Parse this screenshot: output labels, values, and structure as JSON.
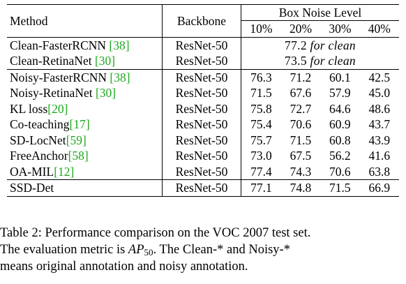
{
  "table": {
    "headers": {
      "method": "Method",
      "backbone": "Backbone",
      "noise_group": "Box Noise Level",
      "levels": [
        "10%",
        "20%",
        "30%",
        "40%"
      ]
    },
    "clean_rows": [
      {
        "method": "Clean-FasterRCNN ",
        "cite": "[38]",
        "backbone": "ResNet-50",
        "value": "77.2 ",
        "note": "for clean"
      },
      {
        "method": "Clean-RetinaNet ",
        "cite": "[30]",
        "backbone": "ResNet-50",
        "value": "73.5 ",
        "note": "for clean"
      }
    ],
    "rows": [
      {
        "method": "Noisy-FasterRCNN ",
        "cite": "[38]",
        "backbone": "ResNet-50",
        "values": [
          "76.3",
          "71.2",
          "60.1",
          "42.5"
        ]
      },
      {
        "method": "Noisy-RetinaNet ",
        "cite": "[30]",
        "backbone": "ResNet-50",
        "values": [
          "71.5",
          "67.6",
          "57.9",
          "45.0"
        ]
      },
      {
        "method": "KL loss",
        "cite": "[20]",
        "backbone": "ResNet-50",
        "values": [
          "75.8",
          "72.7",
          "64.6",
          "48.6"
        ]
      },
      {
        "method": "Co-teaching",
        "cite": "[17]",
        "backbone": "ResNet-50",
        "values": [
          "75.4",
          "70.6",
          "60.9",
          "43.7"
        ]
      },
      {
        "method": "SD-LocNet",
        "cite": "[59]",
        "backbone": "ResNet-50",
        "values": [
          "75.7",
          "71.5",
          "60.8",
          "43.9"
        ]
      },
      {
        "method": "FreeAnchor",
        "cite": "[58]",
        "backbone": "ResNet-50",
        "values": [
          "73.0",
          "67.5",
          "56.2",
          "41.6"
        ]
      },
      {
        "method": "OA-MIL",
        "cite": "[12]",
        "backbone": "ResNet-50",
        "values": [
          "77.4",
          "74.3",
          "70.6",
          "63.8"
        ]
      }
    ],
    "final_row": {
      "method": "SSD-Det",
      "cite": "",
      "backbone": "ResNet-50",
      "values": [
        "77.1",
        "74.8",
        "71.5",
        "66.9"
      ]
    }
  },
  "caption": {
    "line1": "Table 2: Performance comparison on the VOC 2007 test set.",
    "line2_pre": "The evaluation metric is ",
    "metric_base": "AP",
    "metric_sub": "50",
    "line2_post": ".  The Clean-* and Noisy-*",
    "line3": "means original annotation and noisy annotation."
  }
}
